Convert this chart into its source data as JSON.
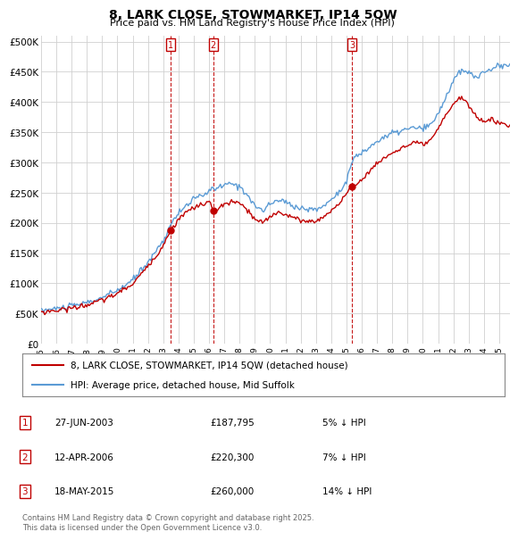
{
  "title": "8, LARK CLOSE, STOWMARKET, IP14 5QW",
  "subtitle": "Price paid vs. HM Land Registry's House Price Index (HPI)",
  "ylabel_ticks": [
    "£0",
    "£50K",
    "£100K",
    "£150K",
    "£200K",
    "£250K",
    "£300K",
    "£350K",
    "£400K",
    "£450K",
    "£500K"
  ],
  "ytick_values": [
    0,
    50000,
    100000,
    150000,
    200000,
    250000,
    300000,
    350000,
    400000,
    450000,
    500000
  ],
  "ylim": [
    0,
    510000
  ],
  "xlim_start": 1995.0,
  "xlim_end": 2025.7,
  "hpi_color": "#5b9bd5",
  "price_color": "#c00000",
  "background_color": "#ffffff",
  "grid_color": "#d0d0d0",
  "sale_marker_color": "#c00000",
  "purchases": [
    {
      "label": "1",
      "date": 2003.49,
      "price": 187795
    },
    {
      "label": "2",
      "date": 2006.28,
      "price": 220300
    },
    {
      "label": "3",
      "date": 2015.38,
      "price": 260000
    }
  ],
  "legend_price_label": "8, LARK CLOSE, STOWMARKET, IP14 5QW (detached house)",
  "legend_hpi_label": "HPI: Average price, detached house, Mid Suffolk",
  "table_entries": [
    {
      "num": "1",
      "date": "27-JUN-2003",
      "price": "£187,795",
      "pct": "5% ↓ HPI"
    },
    {
      "num": "2",
      "date": "12-APR-2006",
      "price": "£220,300",
      "pct": "7% ↓ HPI"
    },
    {
      "num": "3",
      "date": "18-MAY-2015",
      "price": "£260,000",
      "pct": "14% ↓ HPI"
    }
  ],
  "footnote": "Contains HM Land Registry data © Crown copyright and database right 2025.\nThis data is licensed under the Open Government Licence v3.0."
}
